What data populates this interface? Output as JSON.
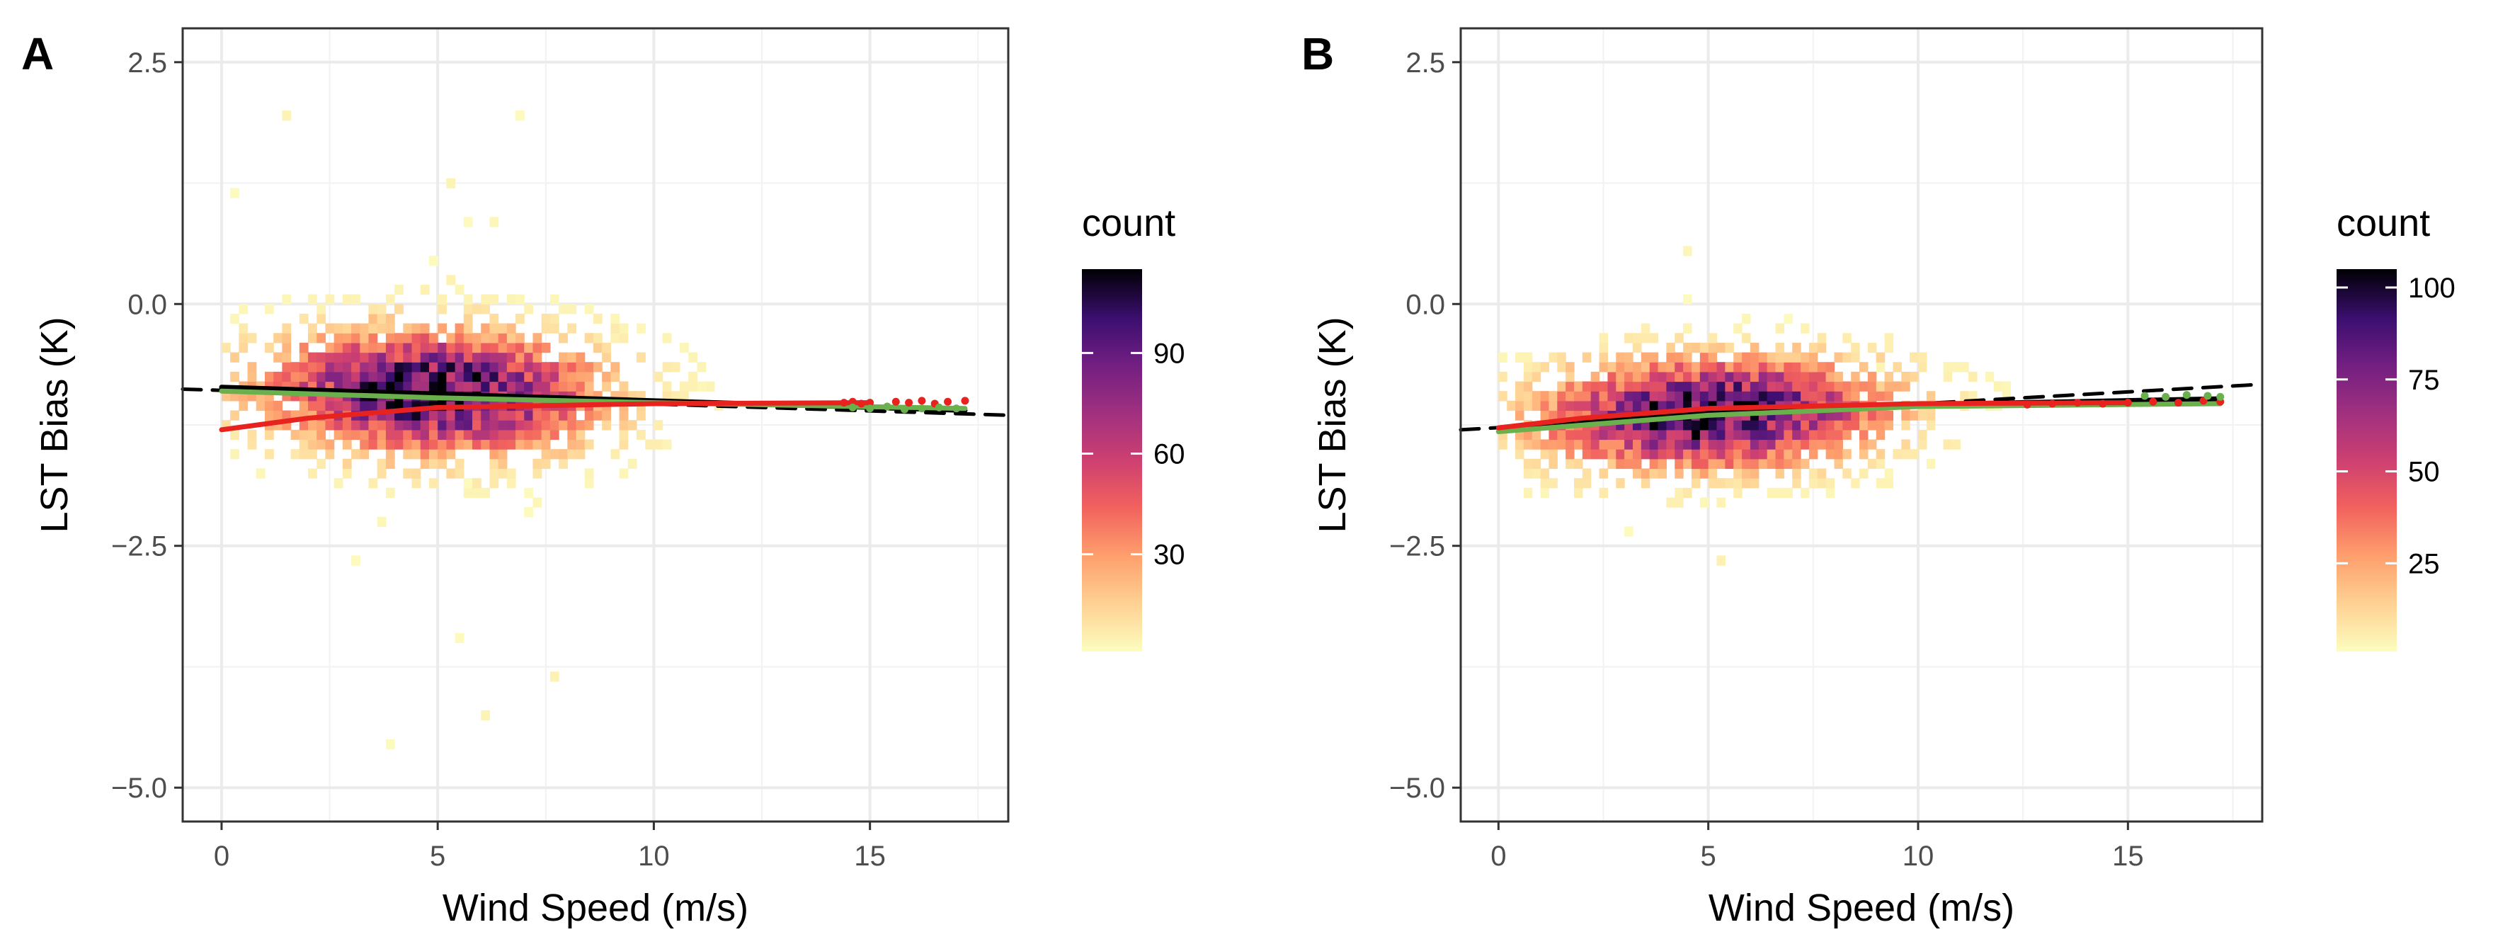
{
  "chart_data": [
    {
      "type": "heatmap",
      "panel_label": "A",
      "xlabel": "Wind Speed (m/s)",
      "ylabel": "LST Bias (K)",
      "xlim": [
        -0.9,
        18.2
      ],
      "ylim": [
        -5.35,
        2.85
      ],
      "x_ticks": [
        0,
        5,
        10,
        15
      ],
      "x_tick_labels": [
        "0",
        "5",
        "10",
        "15"
      ],
      "y_ticks": [
        2.5,
        0.0,
        -2.5,
        -5.0
      ],
      "y_tick_labels": [
        "2.5",
        "0.0",
        "−2.5",
        "−5.0"
      ],
      "grid": true,
      "legend": {
        "title": "count",
        "position": "right",
        "range": [
          1,
          115
        ],
        "ticks": [
          30,
          60,
          90
        ],
        "tick_labels": [
          "30",
          "60",
          "90"
        ]
      },
      "density": {
        "x_center": 4.8,
        "x_spread": 3.4,
        "y_spread": 0.55,
        "y_trend": [
          [
            0,
            -0.9
          ],
          [
            17.2,
            -1.1
          ]
        ],
        "x_range": [
          0,
          17.2
        ],
        "y_outlier_range": [
          -4.9,
          2.3
        ],
        "max_count": 115
      },
      "fits": [
        {
          "name": "dashed-reference",
          "style": "dashed",
          "color": "#000000",
          "x": [
            -0.9,
            18.2
          ],
          "y": [
            -0.88,
            -1.15
          ]
        },
        {
          "name": "black-fit",
          "style": "solid",
          "color": "#000000",
          "x": [
            0,
            5,
            10,
            17.2
          ],
          "y": [
            -0.86,
            -0.93,
            -1.0,
            -1.1
          ]
        },
        {
          "name": "green-fit",
          "style": "solid",
          "color": "#6ab04c",
          "x": [
            0,
            5,
            10,
            17.2
          ],
          "y": [
            -0.9,
            -0.97,
            -1.02,
            -1.08
          ]
        },
        {
          "name": "red-fit",
          "style": "solid",
          "color": "#e8231f",
          "x": [
            0,
            2,
            5,
            10,
            15
          ],
          "y": [
            -1.3,
            -1.18,
            -1.07,
            -1.03,
            -1.02
          ]
        }
      ],
      "end_points": {
        "red": {
          "x": [
            14.4,
            14.6,
            14.8,
            15.0,
            15.6,
            15.9,
            16.2,
            16.5,
            16.8,
            17.2
          ],
          "y": [
            -1.02,
            -1.01,
            -1.03,
            -1.02,
            -1.01,
            -1.02,
            -1.0,
            -1.03,
            -1.01,
            -1.0
          ]
        },
        "green": {
          "x": [
            14.6,
            15.0,
            15.4,
            15.8,
            16.2,
            16.6,
            17.0
          ],
          "y": [
            -1.07,
            -1.08,
            -1.06,
            -1.09,
            -1.08,
            -1.07,
            -1.08
          ]
        }
      }
    },
    {
      "type": "heatmap",
      "panel_label": "B",
      "xlabel": "Wind Speed (m/s)",
      "ylabel": "LST Bias (K)",
      "xlim": [
        -0.9,
        18.2
      ],
      "ylim": [
        -5.35,
        2.85
      ],
      "x_ticks": [
        0,
        5,
        10,
        15
      ],
      "x_tick_labels": [
        "0",
        "5",
        "10",
        "15"
      ],
      "y_ticks": [
        2.5,
        0.0,
        -2.5,
        -5.0
      ],
      "y_tick_labels": [
        "2.5",
        "0.0",
        "−2.5",
        "−5.0"
      ],
      "grid": true,
      "legend": {
        "title": "count",
        "position": "right",
        "range": [
          1,
          105
        ],
        "ticks": [
          25,
          50,
          75,
          100
        ],
        "tick_labels": [
          "25",
          "50",
          "75",
          "100"
        ]
      },
      "density": {
        "x_center": 5.0,
        "x_spread": 3.6,
        "y_spread": 0.5,
        "y_trend": [
          [
            0,
            -1.25
          ],
          [
            17.2,
            -1.0
          ]
        ],
        "x_range": [
          0,
          17.2
        ],
        "y_outlier_range": [
          -2.8,
          0.6
        ],
        "max_count": 105
      },
      "fits": [
        {
          "name": "dashed-reference",
          "style": "dashed",
          "color": "#000000",
          "x": [
            -0.9,
            18.2
          ],
          "y": [
            -1.3,
            -0.83
          ]
        },
        {
          "name": "black-fit",
          "style": "solid",
          "color": "#000000",
          "x": [
            0,
            5,
            10,
            17.2
          ],
          "y": [
            -1.28,
            -1.12,
            -1.04,
            -0.98
          ]
        },
        {
          "name": "green-fit",
          "style": "solid",
          "color": "#6ab04c",
          "x": [
            0,
            5,
            10,
            17.2
          ],
          "y": [
            -1.32,
            -1.15,
            -1.06,
            -1.03
          ]
        },
        {
          "name": "red-fit",
          "style": "solid",
          "color": "#e8231f",
          "x": [
            0,
            2,
            5,
            10,
            15
          ],
          "y": [
            -1.28,
            -1.18,
            -1.08,
            -1.03,
            -1.02
          ]
        }
      ],
      "end_points": {
        "red": {
          "x": [
            12.6,
            13.2,
            13.8,
            14.4,
            15.0,
            15.6,
            16.2,
            16.8,
            17.2
          ],
          "y": [
            -1.04,
            -1.03,
            -1.02,
            -1.03,
            -1.02,
            -1.01,
            -1.02,
            -1.0,
            -1.01
          ]
        },
        "green": {
          "x": [
            15.4,
            15.9,
            16.4,
            16.9,
            17.2
          ],
          "y": [
            -0.95,
            -0.96,
            -0.94,
            -0.95,
            -0.96
          ]
        }
      }
    }
  ]
}
